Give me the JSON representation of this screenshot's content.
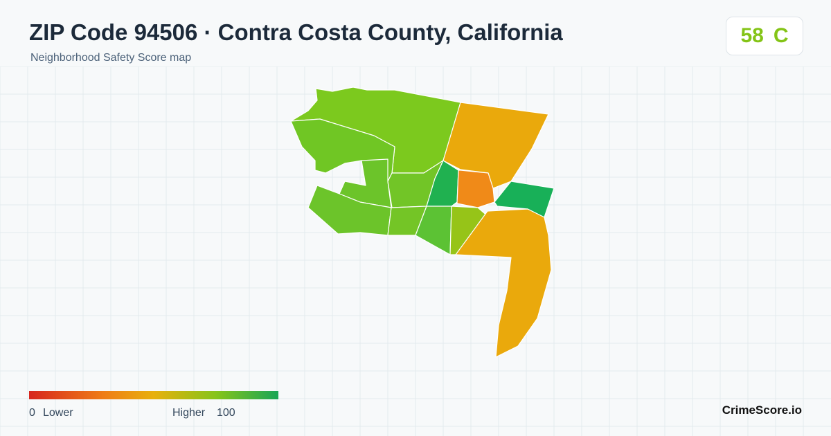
{
  "header": {
    "title": "ZIP Code 94506 · Contra Costa County, California",
    "subtitle": "Neighborhood Safety Score map"
  },
  "score": {
    "value": 58,
    "grade": "C"
  },
  "legend": {
    "min": 0,
    "low_label": "Lower",
    "high_label": "Higher",
    "max": 100
  },
  "footer": {
    "brand": "CrimeScore.io"
  }
}
